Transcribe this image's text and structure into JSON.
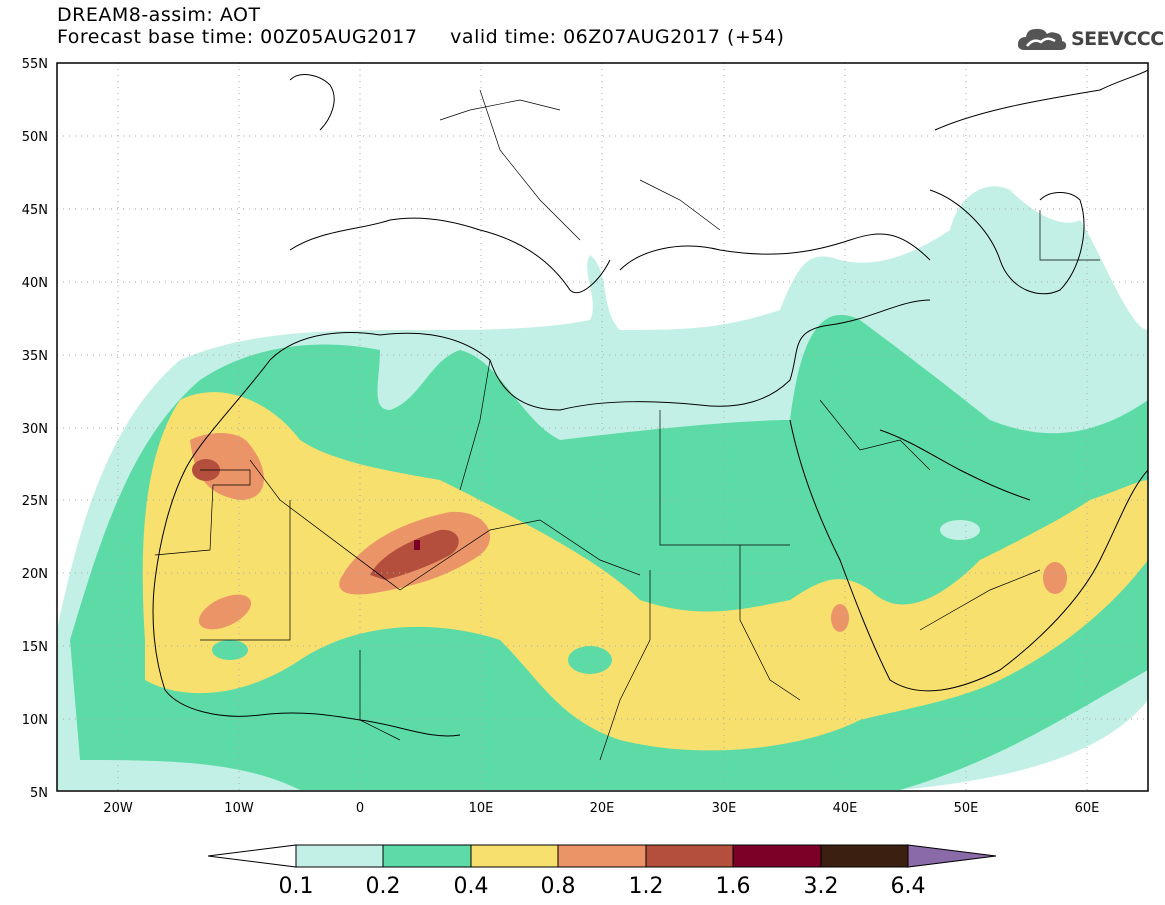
{
  "header": {
    "line1": "DREAM8-assim: AOT",
    "line2": "Forecast base time: 00Z05AUG2017     valid time: 06Z07AUG2017 (+54)"
  },
  "logo": {
    "text": "SEEVCCC",
    "icon": "cloud-logo-icon"
  },
  "map": {
    "lon_range": [
      -25,
      65
    ],
    "lat_range": [
      5,
      55
    ],
    "lat_labels": [
      "55N",
      "50N",
      "45N",
      "40N",
      "35N",
      "30N",
      "25N",
      "20N",
      "15N",
      "10N",
      "5N"
    ],
    "lon_labels": [
      "20W",
      "10W",
      "0",
      "10E",
      "20E",
      "30E",
      "40E",
      "50E",
      "60E"
    ],
    "gridlines": "dotted"
  },
  "colorbar": {
    "labels": [
      "0.1",
      "0.2",
      "0.4",
      "0.8",
      "1.2",
      "1.6",
      "3.2",
      "6.4"
    ],
    "colors": [
      "#ffffff",
      "#c3f0e6",
      "#5ddba6",
      "#f7e06e",
      "#ea9468",
      "#b34f3c",
      "#7a0028",
      "#3b1f10",
      "#8a6aa8"
    ]
  },
  "field": {
    "colors": {
      "c1": "#c3f0e6",
      "c2": "#5ddba6",
      "c3": "#f7e06e",
      "c4": "#ea9468",
      "c5": "#b34f3c",
      "c6": "#7a0028"
    }
  }
}
